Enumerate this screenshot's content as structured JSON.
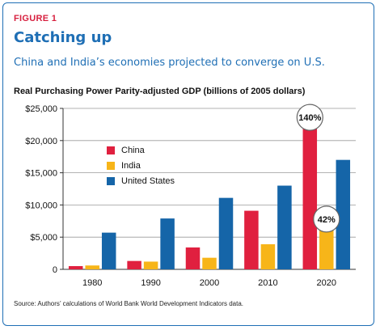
{
  "figure_label": "FIGURE 1",
  "title": "Catching up",
  "subtitle": "China and India’s economies projected to converge on U.S.",
  "source": "Source: Authors’ calculations of World Bank World Development Indicators data.",
  "chart_data": {
    "type": "bar",
    "title": "Real Purchasing Power Parity-adjusted GDP (billions of 2005 dollars)",
    "xlabel": "",
    "ylabel": "",
    "categories": [
      "1980",
      "1990",
      "2000",
      "2010",
      "2020"
    ],
    "ylim": [
      0,
      25000
    ],
    "yticks": [
      0,
      5000,
      10000,
      15000,
      20000,
      25000
    ],
    "ytick_labels": [
      "0",
      "$5,000",
      "$10,000",
      "$15,000",
      "$20,000",
      "$25,000"
    ],
    "series": [
      {
        "name": "China",
        "color": "#e0203f",
        "values": [
          500,
          1300,
          3400,
          9100,
          22000
        ]
      },
      {
        "name": "India",
        "color": "#f7b519",
        "values": [
          600,
          1200,
          1800,
          3900,
          6200
        ]
      },
      {
        "name": "United States",
        "color": "#1565a8",
        "values": [
          5700,
          7900,
          11100,
          13000,
          17000
        ]
      }
    ],
    "legend_position": "upper-left",
    "grid": "horizontal",
    "annotations": [
      {
        "text": "140%",
        "category": "2020",
        "series": "China",
        "y": 23600
      },
      {
        "text": "42%",
        "category": "2020",
        "series": "India",
        "y": 7800
      }
    ]
  }
}
